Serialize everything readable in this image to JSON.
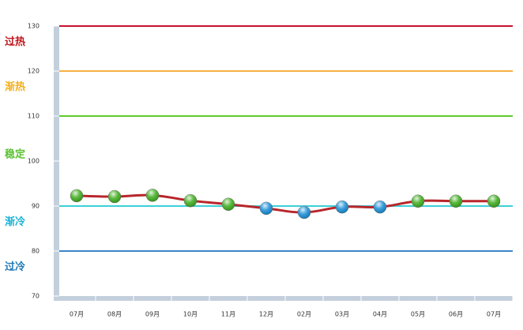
{
  "chart_data": {
    "type": "line",
    "categories": [
      "07月",
      "08月",
      "09月",
      "10月",
      "11月",
      "12月",
      "02月",
      "03月",
      "04月",
      "05月",
      "06月",
      "07月"
    ],
    "series": [
      {
        "color": "#b8262b",
        "values": [
          92.3,
          92.1,
          92.4,
          91.2,
          90.4,
          89.5,
          88.6,
          89.8,
          89.8,
          91.1,
          91.1,
          91.1
        ],
        "marker_colors": [
          "#3fae1e",
          "#3fae1e",
          "#3fae1e",
          "#3fae1e",
          "#3fae1e",
          "#1a8fd6",
          "#1a8fd6",
          "#1a8fd6",
          "#1a8fd6",
          "#3fae1e",
          "#3fae1e",
          "#3fae1e"
        ]
      }
    ],
    "ylim": [
      70,
      130
    ],
    "yticks": [
      70,
      80,
      90,
      100,
      110,
      120,
      130
    ],
    "zones": [
      {
        "label": "过热",
        "value": 130,
        "color": "#c0151b",
        "line_color": "#c8102e"
      },
      {
        "label": "渐热",
        "value": 120,
        "color": "#f2b01e",
        "line_color": "#f7b142"
      },
      {
        "label": "稳定",
        "value": 110,
        "color": "#5bc232",
        "line_color": "#5ccb2a"
      },
      {
        "label": "渐冷",
        "value": 90,
        "color": "#1ab2d6",
        "line_color": "#3cd0d8"
      },
      {
        "label": "过冷",
        "value": 80,
        "color": "#1f78b4",
        "line_color": "#3b86c8"
      }
    ]
  }
}
